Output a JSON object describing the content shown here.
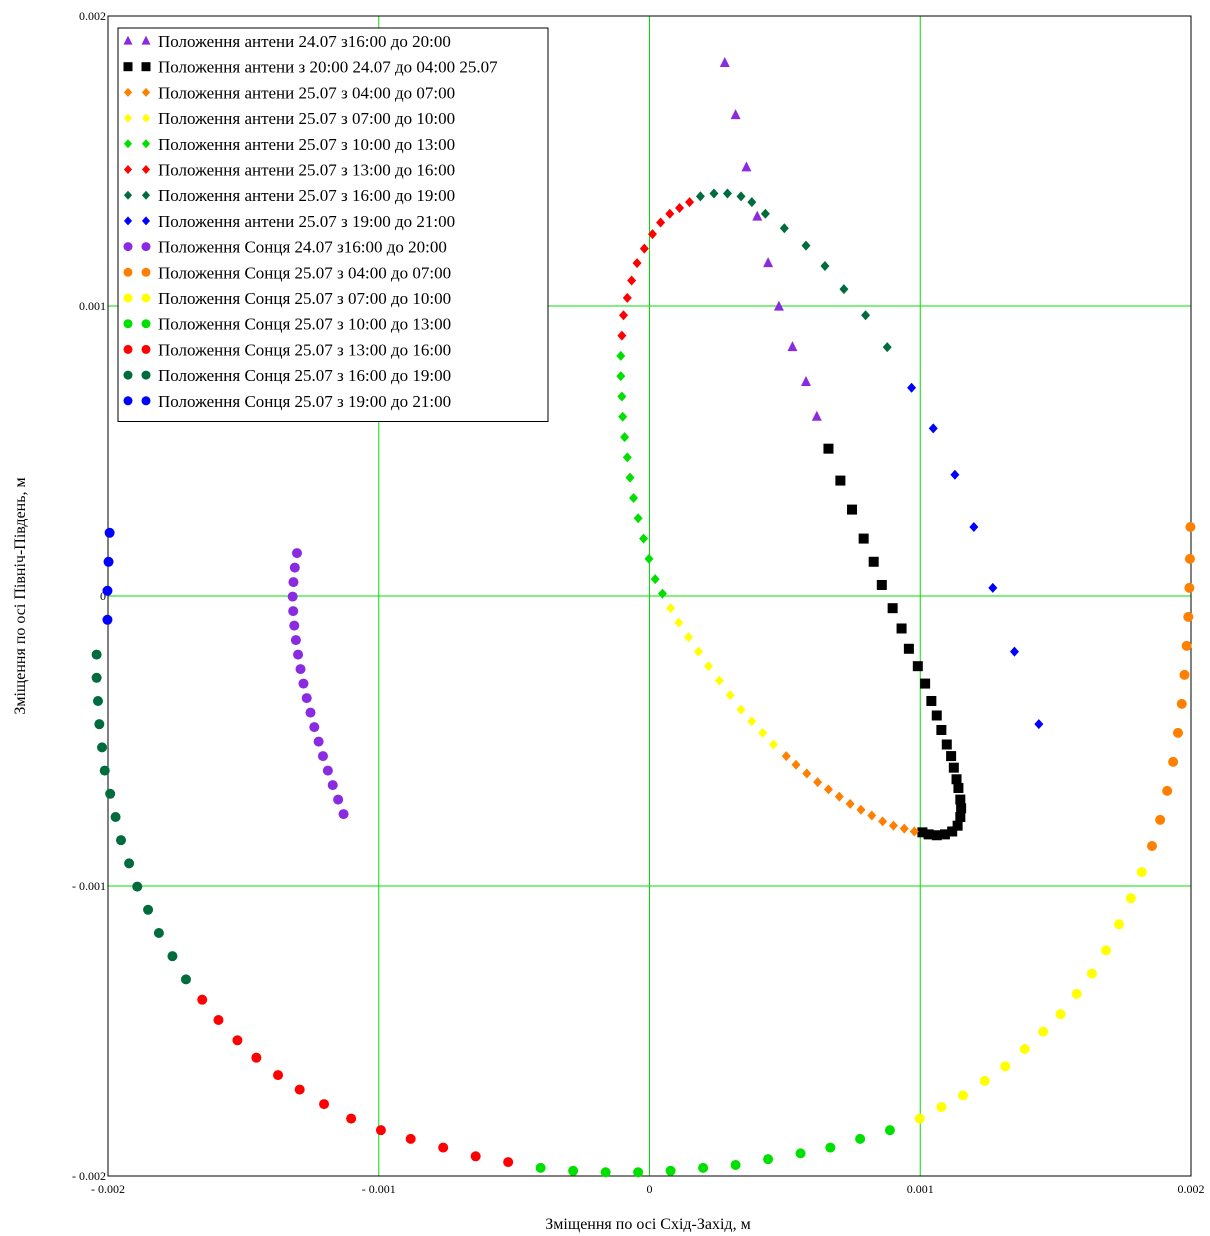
{
  "chart_data": {
    "type": "scatter",
    "title": "",
    "xlabel": "Зміщення по осі  Схід-Захід, м",
    "ylabel": "Зміщення по осі Північ-Південь, м",
    "xlim": [
      -0.002,
      0.002
    ],
    "ylim": [
      -0.002,
      0.002
    ],
    "x_ticks": [
      {
        "value": -0.002,
        "label": "- 0.002"
      },
      {
        "value": -0.001,
        "label": "- 0.001"
      },
      {
        "value": 0,
        "label": "0"
      },
      {
        "value": 0.001,
        "label": "0.001"
      },
      {
        "value": 0.002,
        "label": "0.002"
      }
    ],
    "y_ticks": [
      {
        "value": 0.002,
        "label": "0.002"
      },
      {
        "value": 0.001,
        "label": "0.001"
      },
      {
        "value": 0,
        "label": "0"
      },
      {
        "value": -0.001,
        "label": "- 0.001"
      },
      {
        "value": -0.002,
        "label": "- 0.002"
      }
    ],
    "grid": true,
    "grid_color": "#00e000",
    "legend_position": "top-left",
    "series": [
      {
        "name": "Положення антени 24.07 з16:00 до 20:00",
        "marker": "triangle",
        "color": "#8a2be2",
        "points": [
          [
            0.000278,
            0.001838
          ],
          [
            0.000318,
            0.001658
          ],
          [
            0.000358,
            0.001478
          ],
          [
            0.000398,
            0.001308
          ],
          [
            0.000438,
            0.001148
          ],
          [
            0.000478,
            0.000998
          ],
          [
            0.000528,
            0.000858
          ],
          [
            0.000578,
            0.000738
          ],
          [
            0.000618,
            0.000618
          ]
        ]
      },
      {
        "name": "Положення антени з 20:00 24.07 до 04:00 25.07",
        "marker": "square",
        "color": "#000000",
        "points": [
          [
            0.000661,
            0.000508
          ],
          [
            0.000705,
            0.000398
          ],
          [
            0.000748,
            0.000298
          ],
          [
            0.000791,
            0.000198
          ],
          [
            0.000828,
            0.000118
          ],
          [
            0.000858,
            3.8e-05
          ],
          [
            0.000898,
            -4.2e-05
          ],
          [
            0.000931,
            -0.000112
          ],
          [
            0.000958,
            -0.000182
          ],
          [
            0.000991,
            -0.000242
          ],
          [
            0.001018,
            -0.000302
          ],
          [
            0.001041,
            -0.000362
          ],
          [
            0.001061,
            -0.000412
          ],
          [
            0.001078,
            -0.000462
          ],
          [
            0.001098,
            -0.000512
          ],
          [
            0.001114,
            -0.000552
          ],
          [
            0.001124,
            -0.000592
          ],
          [
            0.001134,
            -0.000632
          ],
          [
            0.001141,
            -0.000662
          ],
          [
            0.001148,
            -0.000702
          ],
          [
            0.001151,
            -0.000732
          ],
          [
            0.001148,
            -0.000762
          ],
          [
            0.001138,
            -0.000792
          ],
          [
            0.001118,
            -0.000812
          ],
          [
            0.001091,
            -0.000822
          ],
          [
            0.001061,
            -0.000825
          ],
          [
            0.001031,
            -0.000822
          ],
          [
            0.001008,
            -0.000815
          ]
        ]
      },
      {
        "name": "Положення антени 25.07 з 04:00 до 07:00",
        "marker": "diamond",
        "color": "#ff8000",
        "points": [
          [
            0.000978,
            -0.000812
          ],
          [
            0.000941,
            -0.000802
          ],
          [
            0.000901,
            -0.000792
          ],
          [
            0.000861,
            -0.000777
          ],
          [
            0.000821,
            -0.000757
          ],
          [
            0.000781,
            -0.000737
          ],
          [
            0.000741,
            -0.000717
          ],
          [
            0.000701,
            -0.000692
          ],
          [
            0.000661,
            -0.000667
          ],
          [
            0.000621,
            -0.000642
          ],
          [
            0.000581,
            -0.000612
          ],
          [
            0.000541,
            -0.000582
          ],
          [
            0.000505,
            -0.000552
          ]
        ]
      },
      {
        "name": "Положення антени 25.07 з 07:00 до 10:00",
        "marker": "diamond",
        "color": "#ffff00",
        "points": [
          [
            0.000458,
            -0.000512
          ],
          [
            0.000418,
            -0.000472
          ],
          [
            0.000378,
            -0.000432
          ],
          [
            0.000338,
            -0.000392
          ],
          [
            0.000298,
            -0.000342
          ],
          [
            0.000258,
            -0.000292
          ],
          [
            0.000218,
            -0.000242
          ],
          [
            0.000181,
            -0.000192
          ],
          [
            0.000144,
            -0.000142
          ],
          [
            0.000108,
            -9.2e-05
          ],
          [
            7.8e-05,
            -4.2e-05
          ]
        ]
      },
      {
        "name": "Положення антени 25.07 з 10:00 до 13:00",
        "marker": "diamond",
        "color": "#00e000",
        "points": [
          [
            4.8e-05,
            8e-06
          ],
          [
            2.1e-05,
            5.8e-05
          ],
          [
            -2e-06,
            0.000128
          ],
          [
            -2.2e-05,
            0.000198
          ],
          [
            -4.2e-05,
            0.000268
          ],
          [
            -5.9e-05,
            0.000338
          ],
          [
            -7.2e-05,
            0.000408
          ],
          [
            -8.2e-05,
            0.000478
          ],
          [
            -9.2e-05,
            0.000548
          ],
          [
            -9.9e-05,
            0.000618
          ],
          [
            -0.000102,
            0.000688
          ],
          [
            -0.000106,
            0.000758
          ],
          [
            -0.000106,
            0.000828
          ]
        ]
      },
      {
        "name": "Положення антени 25.07 з 13:00 до 16:00",
        "marker": "diamond",
        "color": "#ff0000",
        "points": [
          [
            -0.000102,
            0.000898
          ],
          [
            -9.6e-05,
            0.000968
          ],
          [
            -8.2e-05,
            0.001028
          ],
          [
            -6.6e-05,
            0.001088
          ],
          [
            -4.6e-05,
            0.001148
          ],
          [
            -1.9e-05,
            0.001198
          ],
          [
            1.1e-05,
            0.001248
          ],
          [
            4.1e-05,
            0.001288
          ],
          [
            7.5e-05,
            0.001318
          ],
          [
            0.000111,
            0.001338
          ],
          [
            0.000148,
            0.001358
          ]
        ]
      },
      {
        "name": "Положення антени 25.07 з 16:00 до 19:00",
        "marker": "diamond",
        "color": "#006b3c",
        "points": [
          [
            0.000188,
            0.001378
          ],
          [
            0.000238,
            0.001388
          ],
          [
            0.000288,
            0.001388
          ],
          [
            0.000338,
            0.001378
          ],
          [
            0.000378,
            0.001358
          ],
          [
            0.000428,
            0.001318
          ],
          [
            0.000498,
            0.001268
          ],
          [
            0.000578,
            0.001208
          ],
          [
            0.000648,
            0.001138
          ],
          [
            0.000718,
            0.001058
          ],
          [
            0.000798,
            0.000968
          ],
          [
            0.000878,
            0.000858
          ]
        ]
      },
      {
        "name": "Положення антени 25.07 з 19:00 до 21:00",
        "marker": "diamond",
        "color": "#0000ff",
        "points": [
          [
            0.000968,
            0.000718
          ],
          [
            0.001048,
            0.000578
          ],
          [
            0.001128,
            0.000418
          ],
          [
            0.001198,
            0.000238
          ],
          [
            0.001268,
            2.8e-05
          ],
          [
            0.001348,
            -0.000192
          ],
          [
            0.001438,
            -0.000442
          ]
        ]
      },
      {
        "name": "Положення Сонця 24.07 з16:00 до 20:00",
        "marker": "circle",
        "color": "#8a2be2",
        "points": [
          [
            -0.001302,
            0.000148
          ],
          [
            -0.00131,
            9.8e-05
          ],
          [
            -0.001315,
            4.8e-05
          ],
          [
            -0.001318,
            -2e-06
          ],
          [
            -0.001316,
            -5.2e-05
          ],
          [
            -0.001312,
            -0.000102
          ],
          [
            -0.001306,
            -0.000152
          ],
          [
            -0.001298,
            -0.000202
          ],
          [
            -0.001289,
            -0.000252
          ],
          [
            -0.001278,
            -0.000302
          ],
          [
            -0.001266,
            -0.000352
          ],
          [
            -0.001252,
            -0.000402
          ],
          [
            -0.001238,
            -0.000452
          ],
          [
            -0.001222,
            -0.000502
          ],
          [
            -0.001206,
            -0.000552
          ],
          [
            -0.001188,
            -0.000602
          ],
          [
            -0.00117,
            -0.000652
          ],
          [
            -0.00115,
            -0.000702
          ],
          [
            -0.00113,
            -0.000752
          ]
        ]
      },
      {
        "name": "Положення Сонця 25.07 з 04:00 до 07:00",
        "marker": "circle",
        "color": "#ff8000",
        "points": [
          [
            0.001998,
            0.000238
          ],
          [
            0.001996,
            0.000128
          ],
          [
            0.001994,
            2.8e-05
          ],
          [
            0.00199,
            -7.2e-05
          ],
          [
            0.001984,
            -0.000172
          ],
          [
            0.001976,
            -0.000272
          ],
          [
            0.001966,
            -0.000372
          ],
          [
            0.001952,
            -0.000472
          ],
          [
            0.001934,
            -0.000572
          ],
          [
            0.001912,
            -0.000672
          ],
          [
            0.001886,
            -0.000772
          ],
          [
            0.001856,
            -0.000862
          ]
        ]
      },
      {
        "name": "Положення Сонця 25.07 з 07:00 до 10:00",
        "marker": "circle",
        "color": "#ffff00",
        "points": [
          [
            0.001818,
            -0.000952
          ],
          [
            0.001778,
            -0.001042
          ],
          [
            0.001734,
            -0.001132
          ],
          [
            0.001686,
            -0.001222
          ],
          [
            0.001634,
            -0.001302
          ],
          [
            0.001578,
            -0.001372
          ],
          [
            0.001518,
            -0.001442
          ],
          [
            0.001454,
            -0.001502
          ],
          [
            0.001386,
            -0.001562
          ],
          [
            0.001314,
            -0.001622
          ],
          [
            0.001238,
            -0.001672
          ],
          [
            0.001158,
            -0.001722
          ],
          [
            0.001078,
            -0.001762
          ],
          [
            0.000998,
            -0.001802
          ]
        ]
      },
      {
        "name": "Положення Сонця 25.07 з 10:00 до 13:00",
        "marker": "circle",
        "color": "#00e000",
        "points": [
          [
            0.000888,
            -0.001842
          ],
          [
            0.000778,
            -0.001872
          ],
          [
            0.000668,
            -0.001902
          ],
          [
            0.000558,
            -0.001922
          ],
          [
            0.000438,
            -0.001942
          ],
          [
            0.000318,
            -0.001962
          ],
          [
            0.000198,
            -0.001972
          ],
          [
            7.8e-05,
            -0.001982
          ],
          [
            -4.2e-05,
            -0.001987
          ],
          [
            -0.000162,
            -0.001987
          ],
          [
            -0.000282,
            -0.001982
          ],
          [
            -0.000402,
            -0.001972
          ]
        ]
      },
      {
        "name": "Положення Сонця 25.07 з 13:00 до 16:00",
        "marker": "circle",
        "color": "#ff0000",
        "points": [
          [
            -0.000522,
            -0.001952
          ],
          [
            -0.000642,
            -0.001932
          ],
          [
            -0.000762,
            -0.001902
          ],
          [
            -0.000882,
            -0.001872
          ],
          [
            -0.000992,
            -0.001842
          ],
          [
            -0.001102,
            -0.001802
          ],
          [
            -0.001202,
            -0.001752
          ],
          [
            -0.001292,
            -0.001702
          ],
          [
            -0.001372,
            -0.001652
          ],
          [
            -0.001452,
            -0.001592
          ],
          [
            -0.001522,
            -0.001532
          ],
          [
            -0.001592,
            -0.001462
          ],
          [
            -0.001652,
            -0.001392
          ]
        ]
      },
      {
        "name": "Положення Сонця 25.07 з 16:00 до 19:00",
        "marker": "circle",
        "color": "#006b3c",
        "points": [
          [
            -0.001712,
            -0.001322
          ],
          [
            -0.001762,
            -0.001242
          ],
          [
            -0.001812,
            -0.001162
          ],
          [
            -0.001852,
            -0.001082
          ],
          [
            -0.001892,
            -0.001002
          ],
          [
            -0.001922,
            -0.000922
          ],
          [
            -0.001952,
            -0.000842
          ],
          [
            -0.001972,
            -0.000762
          ],
          [
            -0.001992,
            -0.000682
          ],
          [
            -0.002012,
            -0.000602
          ],
          [
            -0.002022,
            -0.000522
          ],
          [
            -0.002032,
            -0.000442
          ],
          [
            -0.002037,
            -0.000362
          ],
          [
            -0.002042,
            -0.000282
          ],
          [
            -0.002042,
            -0.000202
          ]
        ]
      },
      {
        "name": "Положення Сонця 25.07 з 19:00 до 21:00",
        "marker": "circle",
        "color": "#0000ff",
        "points": [
          [
            -0.002002,
            -8.2e-05
          ],
          [
            -0.002002,
            1.8e-05
          ],
          [
            -0.001998,
            0.000118
          ],
          [
            -0.001994,
            0.000218
          ]
        ]
      }
    ]
  }
}
